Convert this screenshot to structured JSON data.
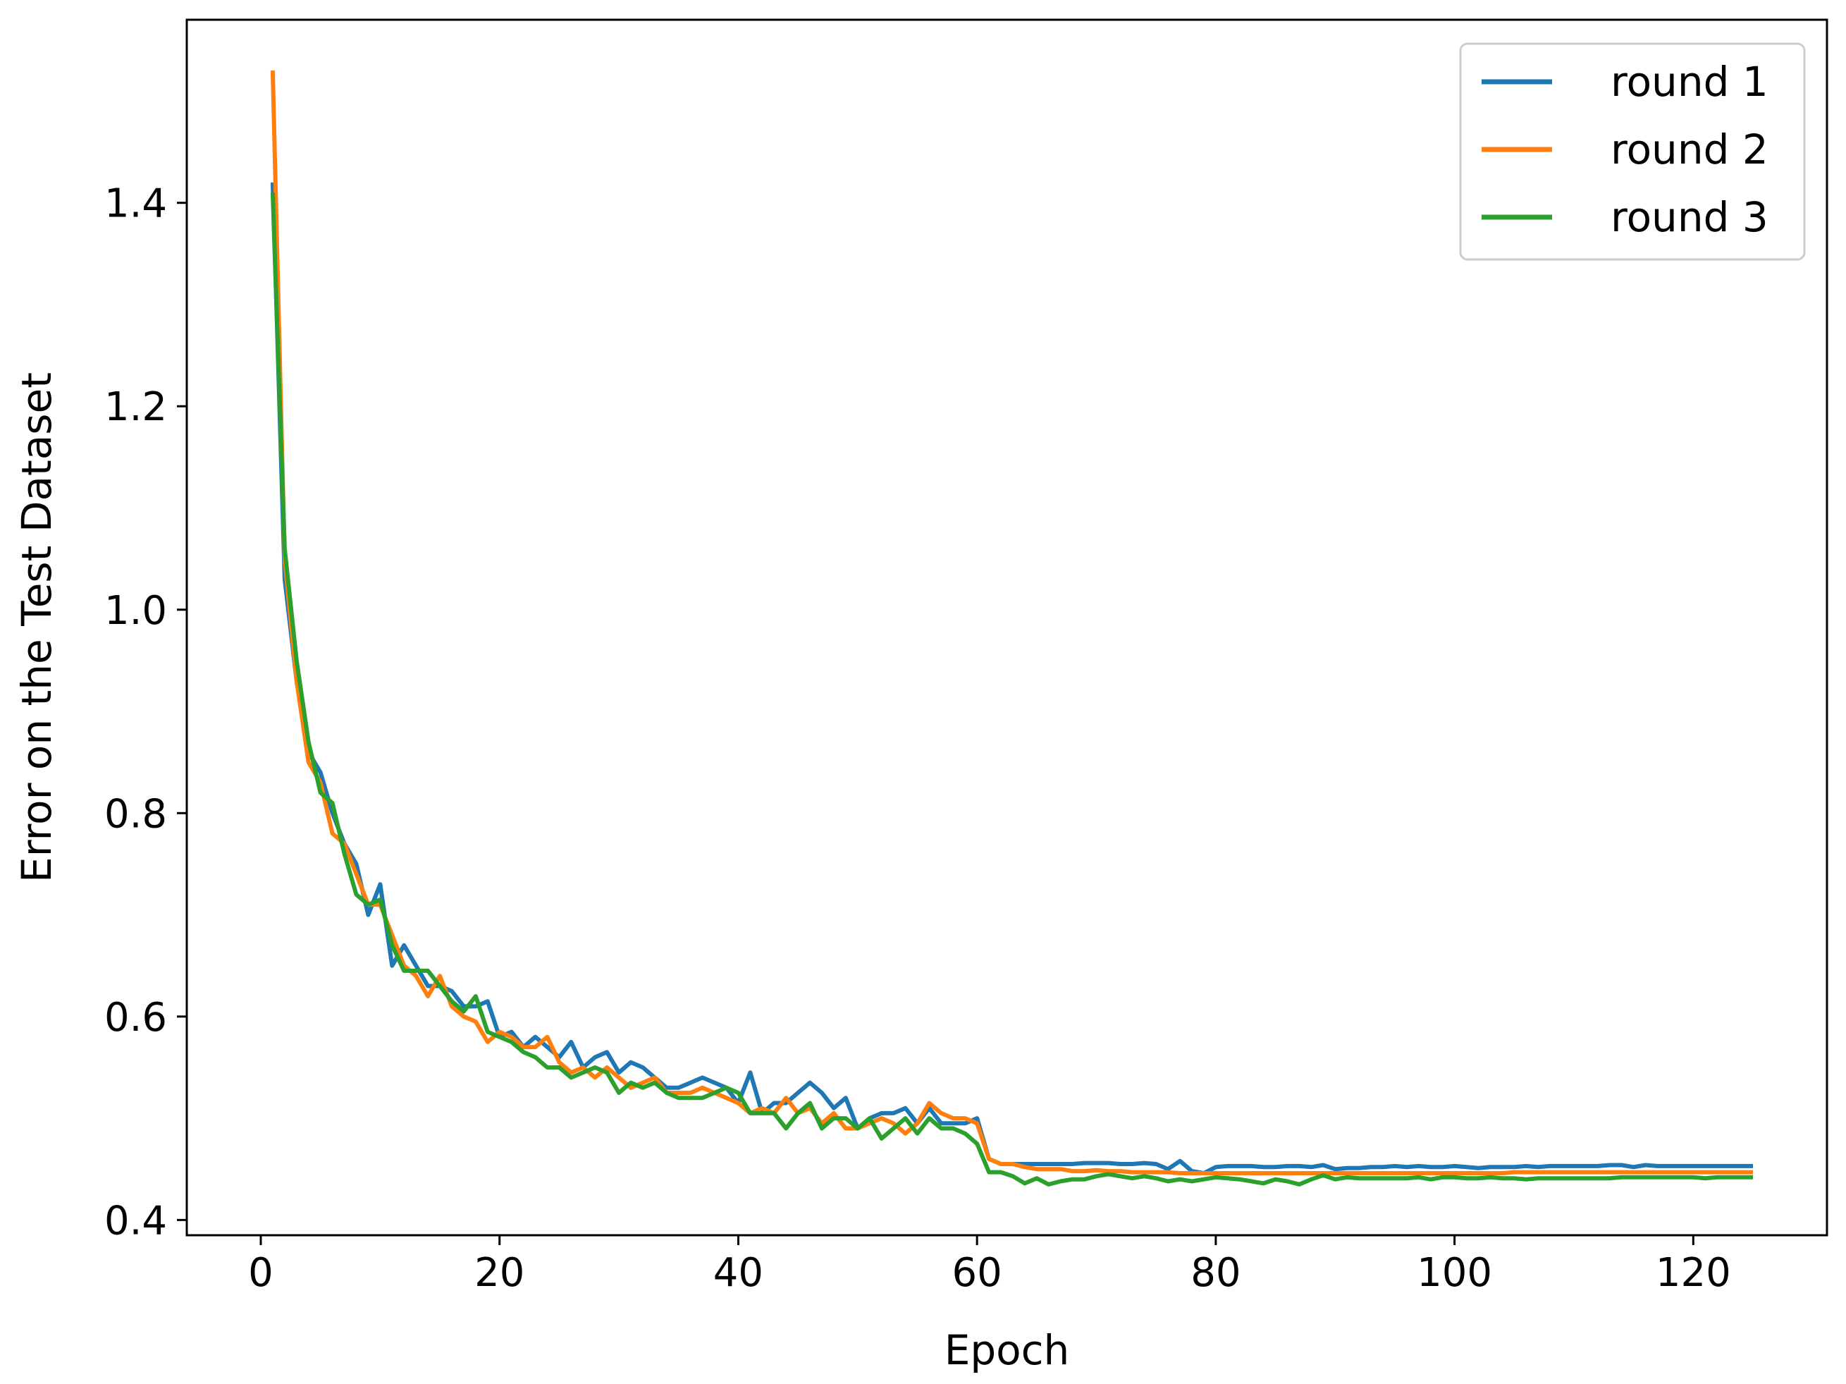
{
  "chart_data": {
    "type": "line",
    "title": "",
    "xlabel": "Epoch",
    "ylabel": "Error on the Test Dataset",
    "xlim": [
      -6.2,
      131.2
    ],
    "ylim": [
      0.385,
      1.58
    ],
    "xticks": [
      0,
      20,
      40,
      60,
      80,
      100,
      120
    ],
    "xtick_labels": [
      "0",
      "20",
      "40",
      "60",
      "80",
      "100",
      "120"
    ],
    "yticks": [
      0.4,
      0.6,
      0.8,
      1.0,
      1.2,
      1.4
    ],
    "ytick_labels": [
      "0.4",
      "0.6",
      "0.8",
      "1.0",
      "1.2",
      "1.4"
    ],
    "grid": false,
    "legend_position": "top-right",
    "x": [
      1,
      2,
      3,
      4,
      5,
      6,
      7,
      8,
      9,
      10,
      11,
      12,
      13,
      14,
      15,
      16,
      17,
      18,
      19,
      20,
      21,
      22,
      23,
      24,
      25,
      26,
      27,
      28,
      29,
      30,
      31,
      32,
      33,
      34,
      35,
      36,
      37,
      38,
      39,
      40,
      41,
      42,
      43,
      44,
      45,
      46,
      47,
      48,
      49,
      50,
      51,
      52,
      53,
      54,
      55,
      56,
      57,
      58,
      59,
      60,
      61,
      62,
      63,
      64,
      65,
      66,
      67,
      68,
      69,
      70,
      71,
      72,
      73,
      74,
      75,
      76,
      77,
      78,
      79,
      80,
      81,
      82,
      83,
      84,
      85,
      86,
      87,
      88,
      89,
      90,
      91,
      92,
      93,
      94,
      95,
      96,
      97,
      98,
      99,
      100,
      101,
      102,
      103,
      104,
      105,
      106,
      107,
      108,
      109,
      110,
      111,
      112,
      113,
      114,
      115,
      116,
      117,
      118,
      119,
      120,
      121,
      122,
      123,
      124,
      125
    ],
    "series": [
      {
        "name": "round 1",
        "color": "#1f77b4",
        "values": [
          1.42,
          1.03,
          0.93,
          0.86,
          0.84,
          0.8,
          0.77,
          0.75,
          0.7,
          0.73,
          0.65,
          0.67,
          0.65,
          0.63,
          0.63,
          0.625,
          0.61,
          0.61,
          0.615,
          0.58,
          0.585,
          0.57,
          0.58,
          0.57,
          0.56,
          0.575,
          0.55,
          0.56,
          0.565,
          0.545,
          0.555,
          0.55,
          0.54,
          0.53,
          0.53,
          0.535,
          0.54,
          0.535,
          0.53,
          0.515,
          0.545,
          0.505,
          0.515,
          0.515,
          0.525,
          0.535,
          0.525,
          0.51,
          0.52,
          0.49,
          0.5,
          0.505,
          0.505,
          0.51,
          0.495,
          0.51,
          0.495,
          0.495,
          0.495,
          0.5,
          0.46,
          0.455,
          0.455,
          0.455,
          0.455,
          0.455,
          0.455,
          0.455,
          0.456,
          0.456,
          0.456,
          0.455,
          0.455,
          0.456,
          0.455,
          0.45,
          0.458,
          0.448,
          0.446,
          0.452,
          0.453,
          0.453,
          0.453,
          0.452,
          0.452,
          0.453,
          0.453,
          0.452,
          0.454,
          0.45,
          0.451,
          0.451,
          0.452,
          0.452,
          0.453,
          0.452,
          0.453,
          0.452,
          0.452,
          0.453,
          0.452,
          0.451,
          0.452,
          0.452,
          0.452,
          0.453,
          0.452,
          0.453,
          0.453,
          0.453,
          0.453,
          0.453,
          0.454,
          0.454,
          0.452,
          0.454,
          0.453,
          0.453,
          0.453,
          0.453,
          0.453,
          0.453,
          0.453,
          0.453,
          0.453
        ]
      },
      {
        "name": "round 2",
        "color": "#ff7f0e",
        "values": [
          1.53,
          1.05,
          0.93,
          0.85,
          0.83,
          0.78,
          0.77,
          0.74,
          0.71,
          0.71,
          0.68,
          0.65,
          0.64,
          0.62,
          0.64,
          0.61,
          0.6,
          0.595,
          0.575,
          0.585,
          0.58,
          0.57,
          0.57,
          0.58,
          0.555,
          0.545,
          0.55,
          0.54,
          0.55,
          0.54,
          0.53,
          0.535,
          0.54,
          0.525,
          0.525,
          0.525,
          0.53,
          0.525,
          0.52,
          0.515,
          0.505,
          0.51,
          0.505,
          0.52,
          0.505,
          0.51,
          0.495,
          0.505,
          0.49,
          0.49,
          0.495,
          0.5,
          0.495,
          0.485,
          0.495,
          0.515,
          0.505,
          0.5,
          0.5,
          0.495,
          0.46,
          0.455,
          0.455,
          0.452,
          0.45,
          0.45,
          0.45,
          0.448,
          0.448,
          0.449,
          0.448,
          0.448,
          0.447,
          0.447,
          0.447,
          0.447,
          0.446,
          0.446,
          0.446,
          0.446,
          0.446,
          0.446,
          0.446,
          0.446,
          0.446,
          0.446,
          0.446,
          0.446,
          0.446,
          0.446,
          0.446,
          0.446,
          0.446,
          0.446,
          0.446,
          0.446,
          0.446,
          0.446,
          0.446,
          0.446,
          0.446,
          0.446,
          0.446,
          0.446,
          0.447,
          0.447,
          0.447,
          0.447,
          0.447,
          0.447,
          0.447,
          0.447,
          0.447,
          0.447,
          0.447,
          0.447,
          0.447,
          0.447,
          0.447,
          0.447,
          0.447,
          0.447,
          0.447,
          0.447,
          0.447
        ]
      },
      {
        "name": "round 3",
        "color": "#2ca02c",
        "values": [
          1.41,
          1.06,
          0.95,
          0.87,
          0.82,
          0.81,
          0.76,
          0.72,
          0.71,
          0.715,
          0.67,
          0.645,
          0.645,
          0.645,
          0.63,
          0.615,
          0.605,
          0.62,
          0.585,
          0.58,
          0.575,
          0.565,
          0.56,
          0.55,
          0.55,
          0.54,
          0.545,
          0.55,
          0.545,
          0.525,
          0.535,
          0.53,
          0.535,
          0.525,
          0.52,
          0.52,
          0.52,
          0.525,
          0.53,
          0.525,
          0.505,
          0.505,
          0.505,
          0.49,
          0.505,
          0.515,
          0.49,
          0.5,
          0.5,
          0.49,
          0.5,
          0.48,
          0.49,
          0.5,
          0.485,
          0.5,
          0.49,
          0.49,
          0.485,
          0.475,
          0.447,
          0.447,
          0.443,
          0.436,
          0.441,
          0.435,
          0.438,
          0.44,
          0.44,
          0.443,
          0.445,
          0.443,
          0.441,
          0.443,
          0.441,
          0.438,
          0.44,
          0.438,
          0.44,
          0.442,
          0.441,
          0.44,
          0.438,
          0.436,
          0.44,
          0.438,
          0.435,
          0.44,
          0.444,
          0.44,
          0.442,
          0.441,
          0.441,
          0.441,
          0.441,
          0.441,
          0.442,
          0.44,
          0.442,
          0.442,
          0.441,
          0.441,
          0.442,
          0.441,
          0.441,
          0.44,
          0.441,
          0.441,
          0.441,
          0.441,
          0.441,
          0.441,
          0.441,
          0.442,
          0.442,
          0.442,
          0.442,
          0.442,
          0.442,
          0.442,
          0.441,
          0.442,
          0.442,
          0.442,
          0.442
        ]
      }
    ]
  }
}
